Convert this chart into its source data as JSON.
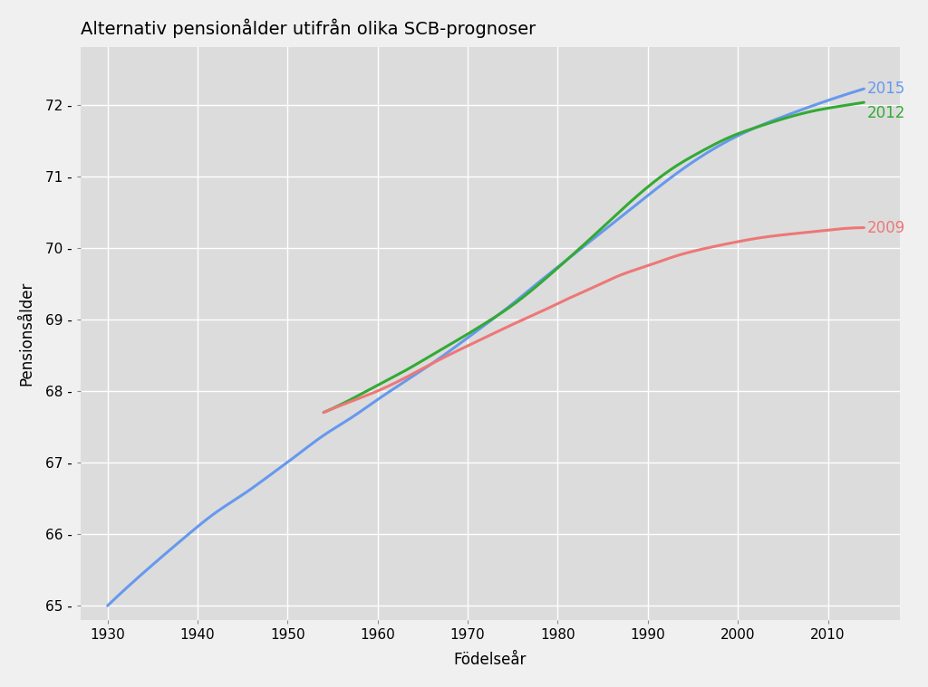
{
  "title": "Alternativ pensionålder utifrån olika SCB-prognoser",
  "xlabel": "Födelseår",
  "ylabel": "Pensionsålder",
  "background_color": "#dcdcdc",
  "grid_color": "#ffffff",
  "fig_background": "#f0f0f0",
  "series": {
    "2015": {
      "color": "#6699ee",
      "x": [
        1930,
        1933,
        1936,
        1939,
        1942,
        1945,
        1948,
        1951,
        1954,
        1957,
        1960,
        1963,
        1966,
        1969,
        1972,
        1975,
        1978,
        1981,
        1984,
        1987,
        1990,
        1993,
        1996,
        1999,
        2002,
        2005,
        2008,
        2011,
        2014
      ],
      "y": [
        65.0,
        65.35,
        65.68,
        66.0,
        66.3,
        66.55,
        66.82,
        67.1,
        67.38,
        67.62,
        67.88,
        68.13,
        68.38,
        68.65,
        68.93,
        69.22,
        69.53,
        69.83,
        70.13,
        70.43,
        70.73,
        71.02,
        71.28,
        71.5,
        71.68,
        71.83,
        71.97,
        72.1,
        72.22
      ]
    },
    "2012": {
      "color": "#33aa33",
      "x": [
        1954,
        1957,
        1960,
        1963,
        1966,
        1969,
        1972,
        1975,
        1978,
        1981,
        1984,
        1987,
        1990,
        1993,
        1996,
        1999,
        2002,
        2005,
        2008,
        2011,
        2014
      ],
      "y": [
        67.7,
        67.88,
        68.08,
        68.28,
        68.5,
        68.72,
        68.95,
        69.2,
        69.5,
        69.83,
        70.17,
        70.52,
        70.85,
        71.13,
        71.35,
        71.54,
        71.68,
        71.8,
        71.9,
        71.97,
        72.03
      ]
    },
    "2009": {
      "color": "#ee7777",
      "x": [
        1954,
        1957,
        1960,
        1963,
        1966,
        1969,
        1972,
        1975,
        1978,
        1981,
        1984,
        1987,
        1990,
        1993,
        1996,
        1999,
        2002,
        2005,
        2008,
        2011,
        2014
      ],
      "y": [
        67.7,
        67.85,
        68.0,
        68.18,
        68.38,
        68.57,
        68.75,
        68.93,
        69.1,
        69.28,
        69.45,
        69.62,
        69.75,
        69.88,
        69.98,
        70.06,
        70.13,
        70.18,
        70.22,
        70.26,
        70.28
      ]
    }
  },
  "xlim": [
    1927,
    2018
  ],
  "ylim": [
    64.8,
    72.8
  ],
  "xticks": [
    1930,
    1940,
    1950,
    1960,
    1970,
    1980,
    1990,
    2000,
    2010
  ],
  "yticks": [
    65,
    66,
    67,
    68,
    69,
    70,
    71,
    72
  ],
  "label_positions": {
    "2015": [
      2014.3,
      72.22
    ],
    "2012": [
      2014.3,
      71.88
    ],
    "2009": [
      2014.3,
      70.28
    ]
  },
  "line_width": 2.2,
  "title_fontsize": 14,
  "axis_label_fontsize": 12,
  "tick_fontsize": 11,
  "annotation_fontsize": 12
}
